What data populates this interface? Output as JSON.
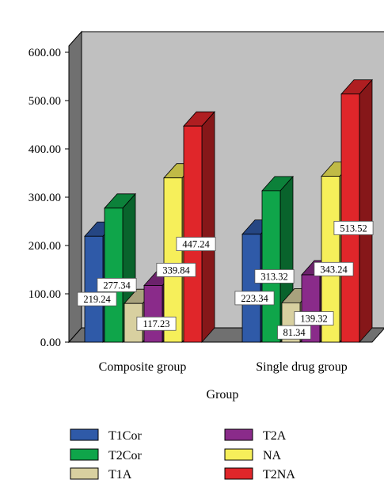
{
  "chart_data": {
    "type": "bar",
    "style": "3d-clustered-column",
    "xlabel": "Group",
    "ylabel": "",
    "categories": [
      "Composite group",
      "Single drug group"
    ],
    "ylim": [
      0,
      600
    ],
    "yticks": [
      "0.00",
      "100.00",
      "200.00",
      "300.00",
      "400.00",
      "500.00",
      "600.00"
    ],
    "plot_background": "#c0c0c0",
    "floor_color": "#707070",
    "legend_position": "bottom",
    "series": [
      {
        "name": "T1Cor",
        "color": "#2f5aa8",
        "values": [
          219.24,
          223.34
        ],
        "labels": [
          "219.24",
          "223.34"
        ]
      },
      {
        "name": "T2Cor",
        "color": "#0fa54a",
        "values": [
          277.34,
          313.32
        ],
        "labels": [
          "277.34",
          "313.32"
        ]
      },
      {
        "name": "T1A",
        "color": "#d8d0a0",
        "values": [
          80.0,
          81.34
        ],
        "labels": [
          "",
          "81.34"
        ]
      },
      {
        "name": "T2A",
        "color": "#8a2b8a",
        "values": [
          117.23,
          139.32
        ],
        "labels": [
          "117.23",
          "139.32"
        ]
      },
      {
        "name": "NA",
        "color": "#f6ef5a",
        "values": [
          339.84,
          343.24
        ],
        "labels": [
          "339.84",
          "343.24"
        ]
      },
      {
        "name": "T2NA",
        "color": "#e0262a",
        "values": [
          447.24,
          513.52
        ],
        "labels": [
          "447.24",
          "513.52"
        ]
      }
    ]
  }
}
